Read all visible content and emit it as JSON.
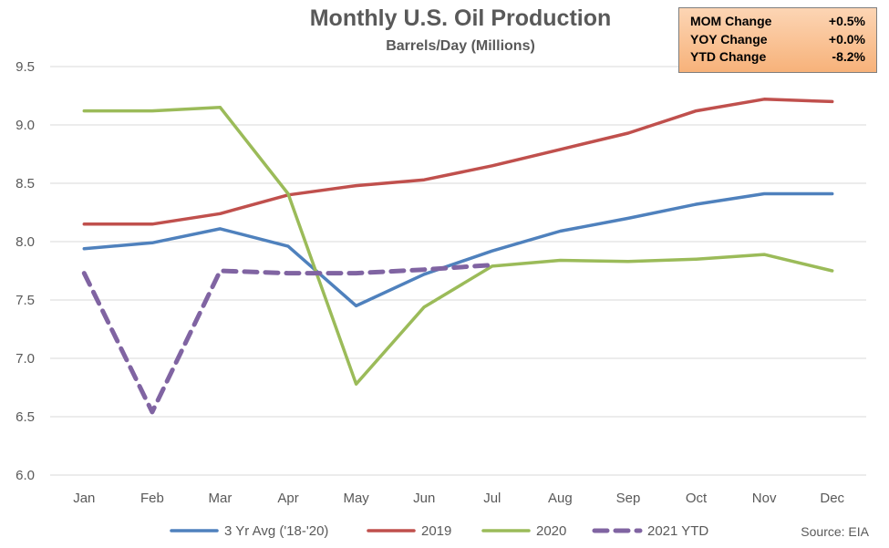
{
  "chart_data": {
    "type": "line",
    "title": "Monthly U.S. Oil Production",
    "subtitle": "Barrels/Day (Millions)",
    "categories": [
      "Jan",
      "Feb",
      "Mar",
      "Apr",
      "May",
      "Jun",
      "Jul",
      "Aug",
      "Sep",
      "Oct",
      "Nov",
      "Dec"
    ],
    "ylim": [
      6.0,
      9.5
    ],
    "yticks": [
      "6.0",
      "6.5",
      "7.0",
      "7.5",
      "8.0",
      "8.5",
      "9.0",
      "9.5"
    ],
    "grid": true,
    "legend_position": "bottom",
    "series": [
      {
        "name": "3 Yr Avg ('18-'20)",
        "color": "#4f81bd",
        "dashed": false,
        "values": [
          7.94,
          7.99,
          8.11,
          7.96,
          7.45,
          7.72,
          7.92,
          8.09,
          8.2,
          8.32,
          8.41,
          8.41
        ]
      },
      {
        "name": "2019",
        "color": "#c0504d",
        "dashed": false,
        "values": [
          8.15,
          8.15,
          8.24,
          8.4,
          8.48,
          8.53,
          8.65,
          8.79,
          8.93,
          9.12,
          9.22,
          9.2
        ]
      },
      {
        "name": "2020",
        "color": "#9bbb59",
        "dashed": false,
        "values": [
          9.12,
          9.12,
          9.15,
          8.41,
          6.78,
          7.44,
          7.79,
          7.84,
          7.83,
          7.85,
          7.89,
          7.75
        ]
      },
      {
        "name": "2021 YTD",
        "color": "#8064a2",
        "dashed": true,
        "values": [
          7.73,
          6.54,
          7.75,
          7.73,
          7.73,
          7.76,
          7.8,
          null,
          null,
          null,
          null,
          null
        ]
      }
    ]
  },
  "changes": [
    {
      "label": "MOM Change",
      "value": "+0.5%"
    },
    {
      "label": "YOY Change",
      "value": "+0.0%"
    },
    {
      "label": "YTD Change",
      "value": "-8.2%"
    }
  ],
  "source": "Source: EIA"
}
